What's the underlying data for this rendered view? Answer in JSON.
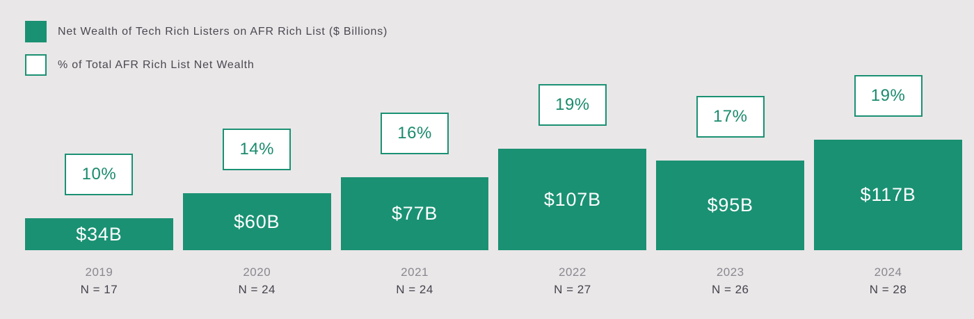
{
  "colors": {
    "accent_green": "#1a9173",
    "background": "#eae7e8",
    "bar_text": "#ffffff",
    "year_label_gray": "#8a8790",
    "dark_text": "#45424d"
  },
  "legend": {
    "items": [
      {
        "swatch": "filled-green-square",
        "label": "Net Wealth of Tech Rich Listers on AFR Rich List ($ Billions)"
      },
      {
        "swatch": "outlined-white-square",
        "label": "% of Total AFR Rich List Net Wealth"
      }
    ]
  },
  "chart_data": {
    "type": "bar",
    "title": "",
    "categories": [
      "2019",
      "2020",
      "2021",
      "2022",
      "2023",
      "2024"
    ],
    "series": [
      {
        "name": "Net Wealth of Tech Rich Listers on AFR Rich List ($ Billions)",
        "values": [
          34,
          60,
          77,
          107,
          95,
          117
        ],
        "labels": [
          "$34B",
          "$60B",
          "$77B",
          "$107B",
          "$95B",
          "$117B"
        ]
      },
      {
        "name": "% of Total AFR Rich List Net Wealth",
        "values": [
          10,
          14,
          16,
          19,
          17,
          19
        ],
        "labels": [
          "10%",
          "14%",
          "16%",
          "19%",
          "17%",
          "19%"
        ]
      },
      {
        "name": "N",
        "values": [
          17,
          24,
          24,
          27,
          26,
          28
        ],
        "labels": [
          "N = 17",
          "N = 24",
          "N = 24",
          "N = 27",
          "N = 26",
          "N = 28"
        ]
      }
    ],
    "ylim": [
      0,
      130
    ],
    "xlabel": "",
    "ylabel": "",
    "grid": false,
    "legend_position": "top-left"
  }
}
